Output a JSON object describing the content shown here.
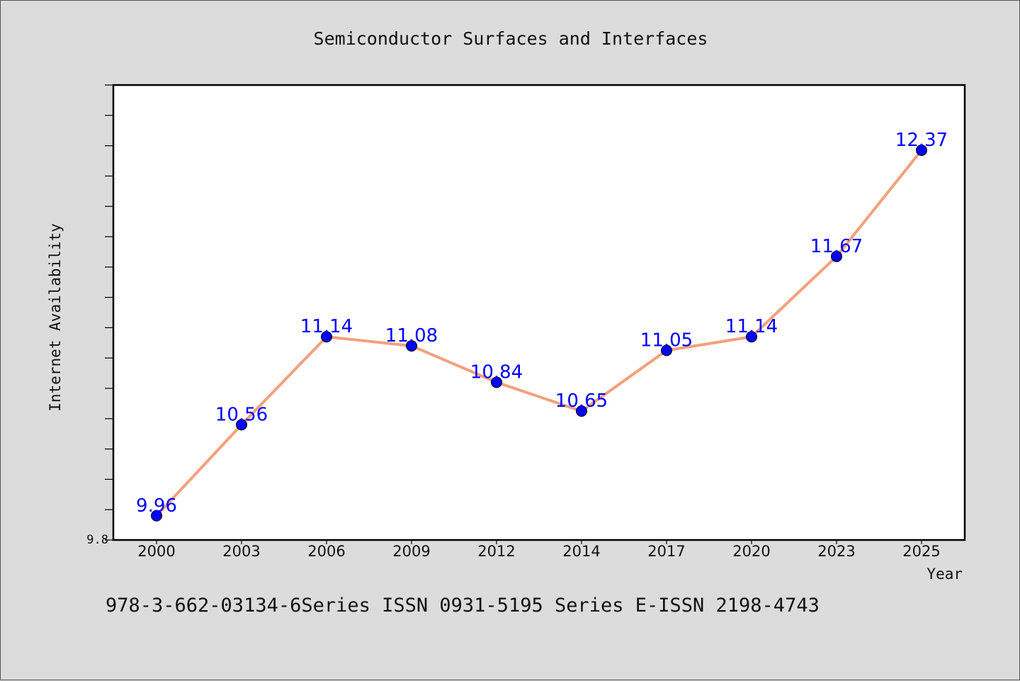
{
  "chart_data": {
    "type": "line",
    "title": "Semiconductor Surfaces and Interfaces",
    "xlabel": "Year",
    "ylabel": "Internet Availability",
    "categories": [
      "2000",
      "2003",
      "2006",
      "2009",
      "2012",
      "2014",
      "2017",
      "2020",
      "2023",
      "2025"
    ],
    "series": [
      {
        "values": [
          9.96,
          10.56,
          11.14,
          11.08,
          10.84,
          10.65,
          11.05,
          11.14,
          11.67,
          12.37
        ],
        "labels": [
          "9.96",
          "10.56",
          "11.14",
          "11.08",
          "10.84",
          "10.65",
          "11.05",
          "11.14",
          "11.67",
          "12.37"
        ]
      }
    ],
    "ytick_labels": [
      "9.8"
    ],
    "ylim": [
      9.8,
      12.8
    ],
    "line_color": "#f4a07c",
    "marker_color": "#0000ff",
    "label_color": "#0000ff",
    "grid": false
  },
  "footer": "978-3-662-03134-6Series ISSN 0931-5195 Series E-ISSN 2198-4743"
}
